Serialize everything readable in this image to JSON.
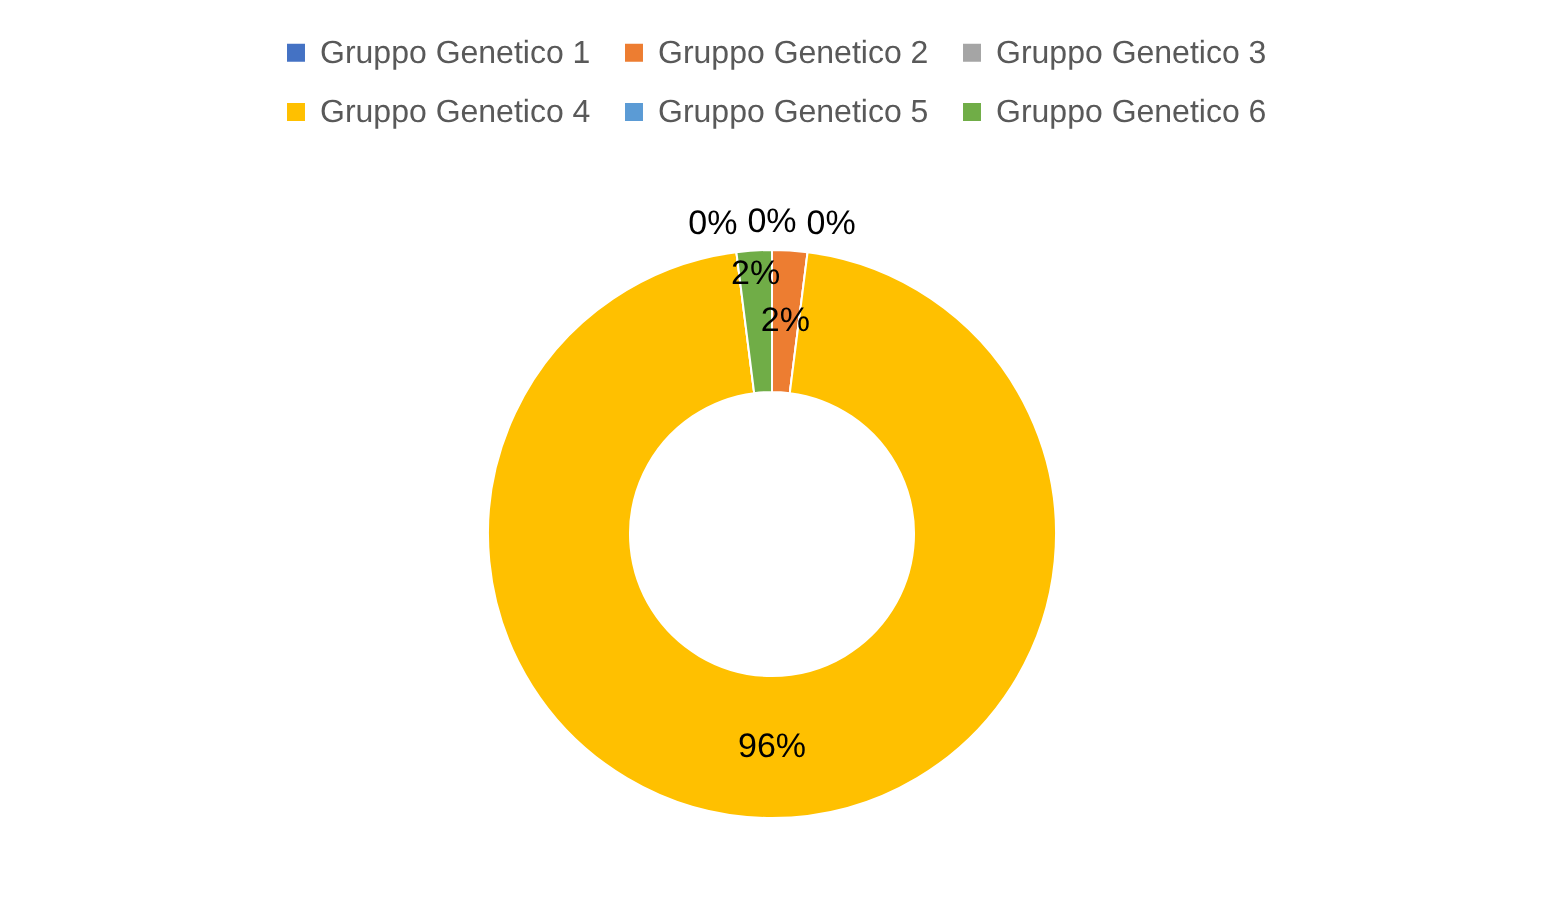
{
  "chart_data": {
    "type": "donut",
    "categories": [
      "Gruppo Genetico 1",
      "Gruppo Genetico 2",
      "Gruppo Genetico 3",
      "Gruppo Genetico 4",
      "Gruppo Genetico 5",
      "Gruppo Genetico 6"
    ],
    "values": [
      0,
      2,
      0,
      96,
      0,
      2
    ],
    "colors": [
      "#4472c4",
      "#ed7d31",
      "#a5a5a5",
      "#ffc000",
      "#5b9bd5",
      "#70ad47"
    ],
    "value_labels": [
      "0%",
      "2%",
      "0%",
      "96%",
      "0%",
      "2%"
    ],
    "legend": "top"
  }
}
